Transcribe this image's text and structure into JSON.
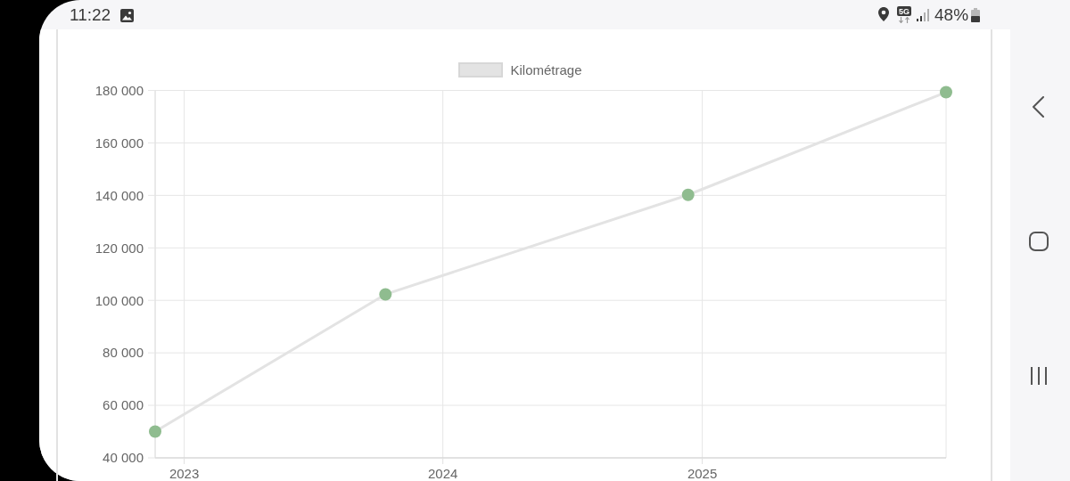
{
  "chart_data": {
    "type": "line",
    "x": [
      "2022-11-21",
      "2023-10-12",
      "2024-12-12",
      "2025-12-11"
    ],
    "series": [
      {
        "name": "Kilométrage",
        "color": "#e3e3e3",
        "colors": [
          "#8fbc8f",
          "#8fbc8f",
          "#8fbc8f",
          "#8fbc8f"
        ],
        "values": [
          50000,
          102300,
          140200,
          179300
        ]
      }
    ],
    "xlim": [
      "2022-11-21",
      "2025-12-11"
    ],
    "xticks": [
      "2023",
      "2024",
      "2025"
    ],
    "ylim": [
      40000,
      180000
    ],
    "yticks": [
      {
        "value": 40000,
        "label": "40 000"
      },
      {
        "value": 60000,
        "label": "60 000"
      },
      {
        "value": 80000,
        "label": "80 000"
      },
      {
        "value": 100000,
        "label": "100 000"
      },
      {
        "value": 120000,
        "label": "120 000"
      },
      {
        "value": 140000,
        "label": "140 000"
      },
      {
        "value": 160000,
        "label": "160 000"
      },
      {
        "value": 180000,
        "label": "180 000"
      }
    ],
    "grid": true,
    "legend": "top",
    "marker": "circle",
    "line_style": "solid",
    "annotations": [
      "11:22",
      "5G",
      "48%"
    ]
  }
}
